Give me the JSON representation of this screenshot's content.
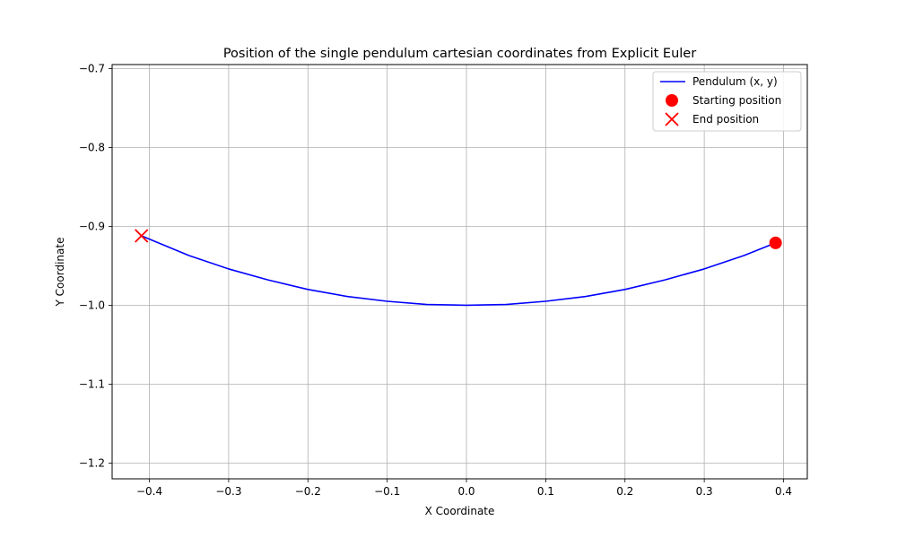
{
  "chart_data": {
    "type": "line",
    "title": "Position of the single pendulum cartesian coordinates from Explicit Euler",
    "xlabel": "X Coordinate",
    "ylabel": "Y Coordinate",
    "xlim": [
      -0.447,
      0.43
    ],
    "ylim": [
      -1.22,
      -0.695
    ],
    "xticks": [
      -0.4,
      -0.3,
      -0.2,
      -0.1,
      0.0,
      0.1,
      0.2,
      0.3,
      0.4
    ],
    "xtick_labels": [
      "−0.4",
      "−0.3",
      "−0.2",
      "−0.1",
      "0.0",
      "0.1",
      "0.2",
      "0.3",
      "0.4"
    ],
    "yticks": [
      -0.7,
      -0.8,
      -0.9,
      -1.0,
      -1.1,
      -1.2
    ],
    "ytick_labels": [
      "−0.7",
      "−0.8",
      "−0.9",
      "−1.0",
      "−1.1",
      "−1.2"
    ],
    "grid": true,
    "legend_position": "top-right",
    "series": [
      {
        "name": "Pendulum (x, y)",
        "color": "#0000ff",
        "x": [
          0.39,
          0.35,
          0.3,
          0.25,
          0.2,
          0.15,
          0.1,
          0.05,
          0.0,
          -0.05,
          -0.1,
          -0.15,
          -0.2,
          -0.25,
          -0.3,
          -0.35,
          -0.41
        ],
        "y": [
          -0.921,
          -0.937,
          -0.954,
          -0.968,
          -0.98,
          -0.989,
          -0.995,
          -0.999,
          -1.0,
          -0.999,
          -0.995,
          -0.989,
          -0.98,
          -0.968,
          -0.954,
          -0.937,
          -0.912
        ]
      }
    ],
    "markers": [
      {
        "name": "Starting position",
        "shape": "circle",
        "color": "#ff0000",
        "x": 0.39,
        "y": -0.921
      },
      {
        "name": "End position",
        "shape": "x",
        "color": "#ff0000",
        "x": -0.41,
        "y": -0.912
      }
    ]
  }
}
